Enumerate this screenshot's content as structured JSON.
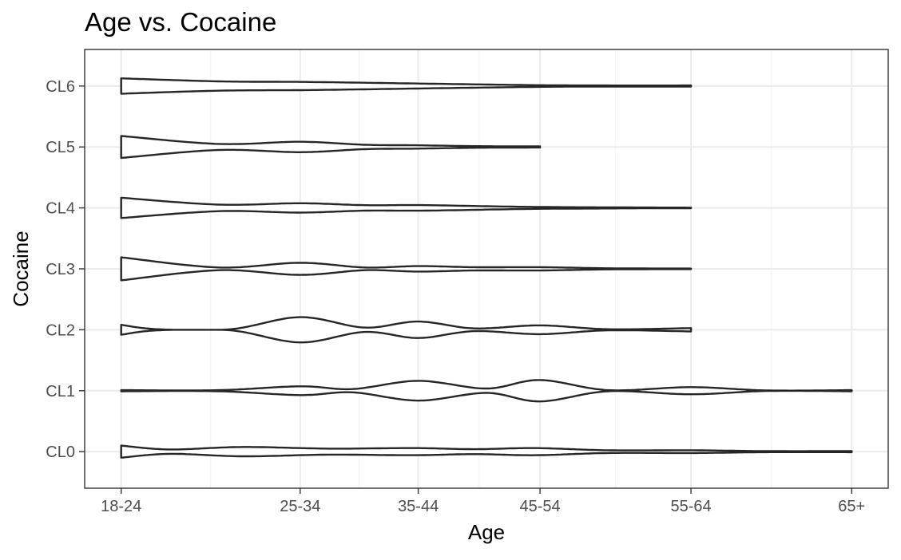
{
  "chart_data": {
    "type": "violin",
    "title": "Age vs. Cocaine",
    "xlabel": "Age",
    "ylabel": "Cocaine",
    "x_ticks": [
      "18-24",
      "25-34",
      "35-44",
      "45-54",
      "55-64",
      "65+"
    ],
    "y_ticks": [
      "CL0",
      "CL1",
      "CL2",
      "CL3",
      "CL4",
      "CL5",
      "CL6"
    ],
    "x_range": [
      1,
      7
    ],
    "x_tick_positions": [
      1,
      2.47,
      3.44,
      4.44,
      5.68,
      7
    ],
    "grid": true,
    "violins": [
      {
        "category": "CL0",
        "x_min": 1,
        "x_max": 7,
        "density": [
          [
            1.0,
            0.22
          ],
          [
            1.4,
            0.08
          ],
          [
            2.0,
            0.17
          ],
          [
            2.7,
            0.11
          ],
          [
            3.4,
            0.13
          ],
          [
            3.9,
            0.09
          ],
          [
            4.4,
            0.13
          ],
          [
            5.0,
            0.05
          ],
          [
            5.7,
            0.05
          ],
          [
            6.3,
            0.02
          ],
          [
            7.0,
            0.02
          ]
        ]
      },
      {
        "category": "CL1",
        "x_min": 1,
        "x_max": 7,
        "density": [
          [
            1.0,
            0.02
          ],
          [
            1.8,
            0.02
          ],
          [
            2.47,
            0.16
          ],
          [
            2.9,
            0.06
          ],
          [
            3.44,
            0.36
          ],
          [
            4.0,
            0.08
          ],
          [
            4.44,
            0.39
          ],
          [
            5.0,
            0.02
          ],
          [
            5.68,
            0.13
          ],
          [
            6.3,
            0.01
          ],
          [
            7.0,
            0.02
          ]
        ]
      },
      {
        "category": "CL2",
        "x_min": 1,
        "x_max": 5.68,
        "density": [
          [
            1.0,
            0.18
          ],
          [
            1.3,
            0.02
          ],
          [
            1.9,
            0.02
          ],
          [
            2.47,
            0.46
          ],
          [
            3.0,
            0.08
          ],
          [
            3.44,
            0.3
          ],
          [
            3.9,
            0.05
          ],
          [
            4.44,
            0.16
          ],
          [
            5.0,
            0.02
          ],
          [
            5.68,
            0.06
          ]
        ]
      },
      {
        "category": "CL3",
        "x_min": 1,
        "x_max": 5.68,
        "density": [
          [
            1.0,
            0.42
          ],
          [
            1.8,
            0.05
          ],
          [
            2.47,
            0.22
          ],
          [
            3.0,
            0.05
          ],
          [
            3.44,
            0.1
          ],
          [
            3.9,
            0.06
          ],
          [
            4.44,
            0.06
          ],
          [
            5.0,
            0.02
          ],
          [
            5.68,
            0.01
          ]
        ]
      },
      {
        "category": "CL4",
        "x_min": 1,
        "x_max": 5.68,
        "density": [
          [
            1.0,
            0.37
          ],
          [
            1.8,
            0.12
          ],
          [
            2.47,
            0.17
          ],
          [
            3.0,
            0.1
          ],
          [
            3.5,
            0.1
          ],
          [
            4.3,
            0.04
          ],
          [
            5.0,
            0.02
          ],
          [
            5.68,
            0.01
          ]
        ]
      },
      {
        "category": "CL5",
        "x_min": 1,
        "x_max": 4.44,
        "density": [
          [
            1.0,
            0.4
          ],
          [
            1.8,
            0.11
          ],
          [
            2.47,
            0.19
          ],
          [
            3.0,
            0.08
          ],
          [
            3.44,
            0.06
          ],
          [
            3.9,
            0.03
          ],
          [
            4.44,
            0.02
          ]
        ]
      },
      {
        "category": "CL6",
        "x_min": 1,
        "x_max": 5.68,
        "density": [
          [
            1.0,
            0.28
          ],
          [
            1.8,
            0.17
          ],
          [
            2.47,
            0.15
          ],
          [
            3.0,
            0.12
          ],
          [
            3.6,
            0.08
          ],
          [
            4.44,
            0.03
          ],
          [
            5.0,
            0.02
          ],
          [
            5.68,
            0.02
          ]
        ]
      }
    ]
  }
}
